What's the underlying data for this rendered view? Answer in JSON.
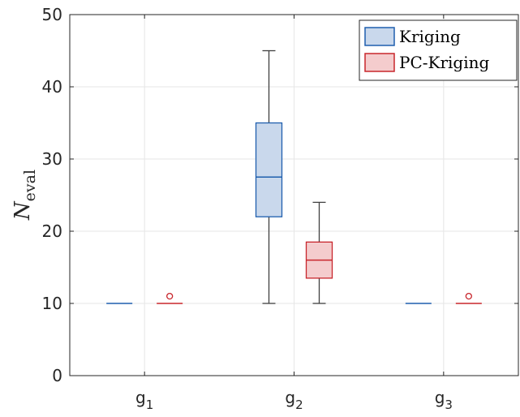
{
  "chart_data": {
    "type": "boxplot",
    "categories": [
      {
        "base": "g",
        "sub": "1"
      },
      {
        "base": "g",
        "sub": "2"
      },
      {
        "base": "g",
        "sub": "3"
      }
    ],
    "ylabel": {
      "base": "N",
      "sub": "eval"
    },
    "ylim": [
      0,
      50
    ],
    "yticks": [
      0,
      10,
      20,
      30,
      40,
      50
    ],
    "grid": true,
    "legend_position": "top-right",
    "series": [
      {
        "name": "Kriging",
        "edge_color": "#1f5fae",
        "fill_color": "#c9d8ec",
        "boxes": [
          {
            "whisker_low": 10,
            "q1": 10,
            "median": 10,
            "q3": 10,
            "whisker_high": 10,
            "outliers": []
          },
          {
            "whisker_low": 10,
            "q1": 22,
            "median": 27.5,
            "q3": 35,
            "whisker_high": 45,
            "outliers": []
          },
          {
            "whisker_low": 10,
            "q1": 10,
            "median": 10,
            "q3": 10,
            "whisker_high": 10,
            "outliers": []
          }
        ]
      },
      {
        "name": "PC-Kriging",
        "edge_color": "#c8262c",
        "fill_color": "#f4cccd",
        "boxes": [
          {
            "whisker_low": 10,
            "q1": 10,
            "median": 10,
            "q3": 10,
            "whisker_high": 10,
            "outliers": [
              11
            ]
          },
          {
            "whisker_low": 10,
            "q1": 13.5,
            "median": 16,
            "q3": 18.5,
            "whisker_high": 24,
            "outliers": []
          },
          {
            "whisker_low": 10,
            "q1": 10,
            "median": 10,
            "q3": 10,
            "whisker_high": 10,
            "outliers": [
              11
            ]
          }
        ]
      }
    ]
  }
}
